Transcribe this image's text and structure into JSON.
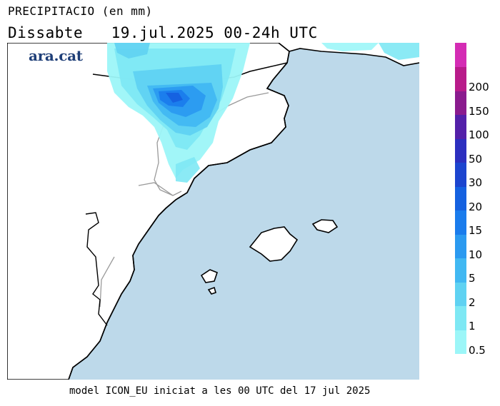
{
  "header": {
    "title": "PRECIPITACIO (en mm)",
    "subtitle": "Dissabte   19.jul.2025 00-24h UTC"
  },
  "brand": {
    "name": "ara.cat",
    "color": "#1f3f78"
  },
  "footer": {
    "text": "model ICON_EU iniciat a les 00 UTC del 17 jul 2025"
  },
  "colors": {
    "sea": "#bdd9ea",
    "land": "#ffffff",
    "coast": "#000000",
    "borders": "#9a9a9a"
  },
  "legend": {
    "bins": [
      {
        "label": "0.5",
        "color": "#9cf6f8"
      },
      {
        "label": "1",
        "color": "#7ee8f4"
      },
      {
        "label": "2",
        "color": "#5fd2f2"
      },
      {
        "label": "5",
        "color": "#41b8f2"
      },
      {
        "label": "10",
        "color": "#2b9af0"
      },
      {
        "label": "15",
        "color": "#1a7cec"
      },
      {
        "label": "20",
        "color": "#1561e0"
      },
      {
        "label": "30",
        "color": "#1c45cf"
      },
      {
        "label": "50",
        "color": "#2c2fbf"
      },
      {
        "label": "100",
        "color": "#5320a9"
      },
      {
        "label": "150",
        "color": "#8a1b8e"
      },
      {
        "label": "200",
        "color": "#b81b8a"
      },
      {
        "label": "",
        "color": "#d42cb4"
      }
    ]
  }
}
